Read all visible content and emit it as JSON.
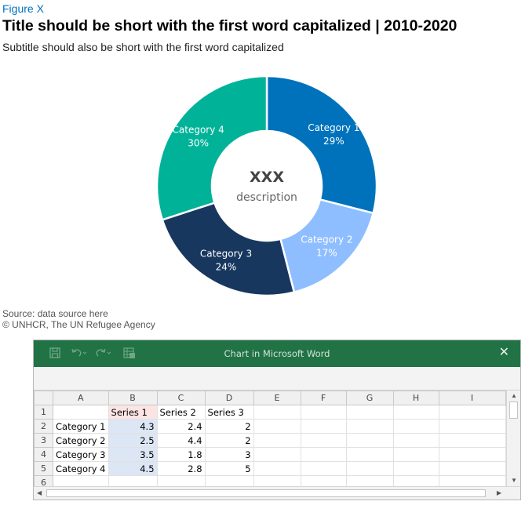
{
  "figure_label": "Figure X",
  "title": "Title should be short with the first word capitalized | 2010-2020",
  "subtitle": "Subtitle should also be short with the first word capitalized",
  "center_value": "XXX",
  "center_description": "description",
  "source": "Source: data source here",
  "credit": "© UNHCR, The UN Refugee Agency",
  "colors": {
    "category_1": "#0072bc",
    "category_2": "#8ebeff",
    "category_3": "#18375f",
    "category_4": "#00b398",
    "ribbon": "#217346"
  },
  "chart_data": {
    "type": "pie",
    "subtype": "donut",
    "categories": [
      "Category 1",
      "Category 2",
      "Category 3",
      "Category 4"
    ],
    "values": [
      29,
      17,
      24,
      30
    ],
    "labels": [
      "29%",
      "17%",
      "24%",
      "30%"
    ]
  },
  "excel": {
    "window_title": "Chart in Microsoft Word",
    "icons": [
      "save-icon",
      "undo-icon",
      "redo-icon",
      "edit-data-icon",
      "close-icon"
    ],
    "close_glyph": "✕",
    "column_headers": [
      "A",
      "B",
      "C",
      "D",
      "E",
      "F",
      "G",
      "H",
      "I"
    ],
    "row_headers": [
      "1",
      "2",
      "3",
      "4",
      "5",
      "6"
    ],
    "series_headers": [
      "Series 1",
      "Series 2",
      "Series 3"
    ],
    "rows": [
      {
        "label": "Category 1",
        "s1": "4.3",
        "s2": "2.4",
        "s3": "2"
      },
      {
        "label": "Category 2",
        "s1": "2.5",
        "s2": "4.4",
        "s3": "2"
      },
      {
        "label": "Category 3",
        "s1": "3.5",
        "s2": "1.8",
        "s3": "3"
      },
      {
        "label": "Category 4",
        "s1": "4.5",
        "s2": "2.8",
        "s3": "5"
      }
    ]
  }
}
